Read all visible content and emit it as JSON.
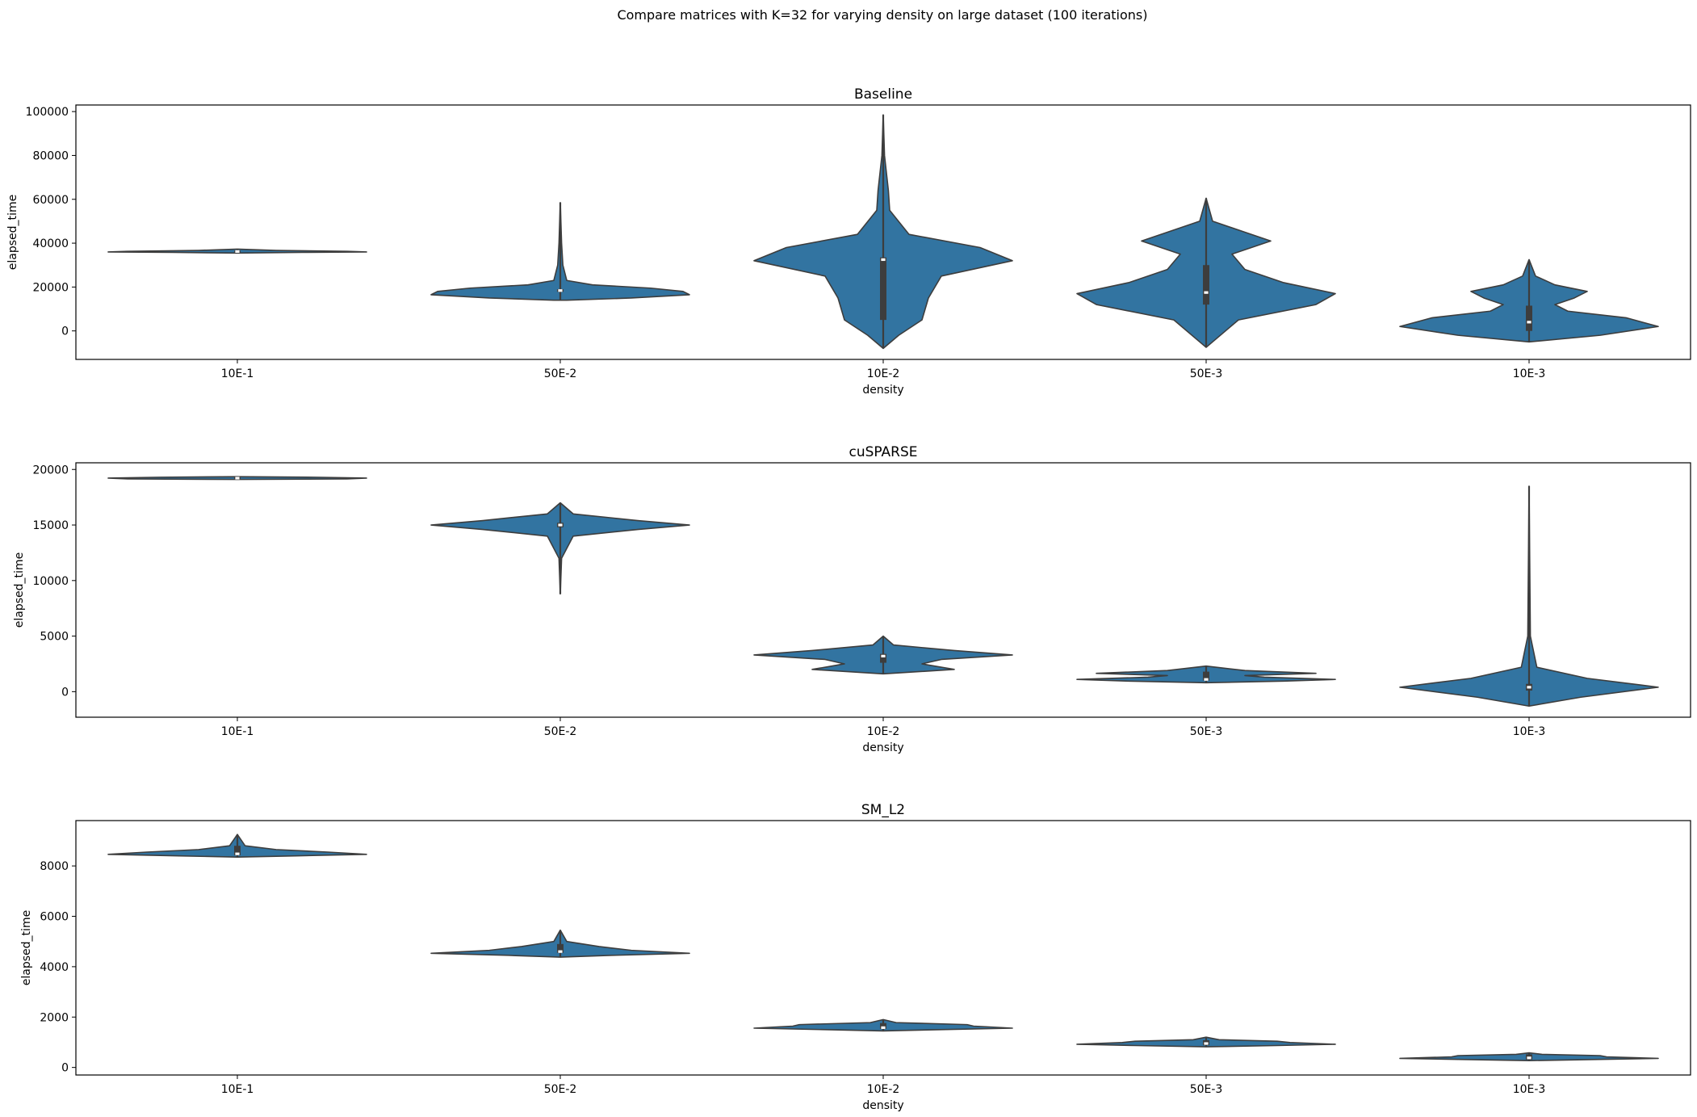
{
  "suptitle": "Compare matrices with K=32 for varying density on large dataset (100 iterations)",
  "colors": {
    "violin": "#3274a1",
    "edge": "#3d3d3d",
    "box": "#3d3d3d",
    "median": "#ffffff",
    "axis": "#000000"
  },
  "chart_data": [
    {
      "type": "violin",
      "title": "Baseline",
      "xlabel": "density",
      "ylabel": "elapsed_time",
      "categories": [
        "10E-1",
        "50E-2",
        "10E-2",
        "50E-3",
        "10E-3"
      ],
      "ylim": [
        -13000,
        103000
      ],
      "yticks": [
        0,
        20000,
        40000,
        60000,
        80000,
        100000
      ],
      "ytick_labels": [
        "0",
        "20000",
        "40000",
        "60000",
        "80000",
        "100000"
      ],
      "violins": [
        {
          "min": 35500,
          "max": 37300,
          "q1": 35900,
          "q3": 36600,
          "median": 36200,
          "profile": [
            [
              35500,
              0
            ],
            [
              35800,
              0.5
            ],
            [
              36000,
              1.0
            ],
            [
              36300,
              0.85
            ],
            [
              36700,
              0.3
            ],
            [
              37300,
              0
            ]
          ]
        },
        {
          "min": 14000,
          "max": 58500,
          "q1": 17800,
          "q3": 19000,
          "median": 18400,
          "profile": [
            [
              14000,
              0.05
            ],
            [
              15000,
              0.55
            ],
            [
              16500,
              1.0
            ],
            [
              18000,
              0.95
            ],
            [
              19500,
              0.7
            ],
            [
              21000,
              0.25
            ],
            [
              23000,
              0.05
            ],
            [
              30000,
              0.02
            ],
            [
              40000,
              0.01
            ],
            [
              58500,
              0
            ]
          ]
        },
        {
          "min": -8000,
          "max": 98500,
          "q1": 5000,
          "q3": 33500,
          "median": 32500,
          "profile": [
            [
              -8000,
              0
            ],
            [
              -2000,
              0.12
            ],
            [
              5000,
              0.3
            ],
            [
              15000,
              0.35
            ],
            [
              25000,
              0.45
            ],
            [
              32000,
              1.0
            ],
            [
              38000,
              0.75
            ],
            [
              44000,
              0.2
            ],
            [
              55000,
              0.05
            ],
            [
              64000,
              0.04
            ],
            [
              80000,
              0.01
            ],
            [
              98500,
              0
            ]
          ]
        },
        {
          "min": -7500,
          "max": 60500,
          "q1": 12000,
          "q3": 30000,
          "median": 17500,
          "profile": [
            [
              -7500,
              0
            ],
            [
              5000,
              0.25
            ],
            [
              12000,
              0.85
            ],
            [
              17000,
              1.0
            ],
            [
              22000,
              0.6
            ],
            [
              28000,
              0.3
            ],
            [
              35000,
              0.2
            ],
            [
              41000,
              0.5
            ],
            [
              45000,
              0.3
            ],
            [
              50000,
              0.05
            ],
            [
              60500,
              0
            ]
          ]
        },
        {
          "min": -5000,
          "max": 32500,
          "q1": 0,
          "q3": 11500,
          "median": 4000,
          "profile": [
            [
              -5000,
              0
            ],
            [
              -2000,
              0.55
            ],
            [
              2000,
              1.0
            ],
            [
              6000,
              0.75
            ],
            [
              9000,
              0.3
            ],
            [
              12000,
              0.2
            ],
            [
              15000,
              0.35
            ],
            [
              18000,
              0.45
            ],
            [
              21000,
              0.2
            ],
            [
              25000,
              0.05
            ],
            [
              32500,
              0
            ]
          ]
        }
      ]
    },
    {
      "type": "violin",
      "title": "cuSPARSE",
      "xlabel": "density",
      "ylabel": "elapsed_time",
      "categories": [
        "10E-1",
        "50E-2",
        "10E-2",
        "50E-3",
        "10E-3"
      ],
      "ylim": [
        -2300,
        20600
      ],
      "yticks": [
        0,
        5000,
        10000,
        15000,
        20000
      ],
      "ytick_labels": [
        "0",
        "5000",
        "10000",
        "15000",
        "20000"
      ],
      "violins": [
        {
          "min": 19100,
          "max": 19350,
          "q1": 19150,
          "q3": 19300,
          "median": 19220,
          "profile": [
            [
              19100,
              0
            ],
            [
              19150,
              0.85
            ],
            [
              19220,
              1.0
            ],
            [
              19300,
              0.6
            ],
            [
              19350,
              0
            ]
          ]
        },
        {
          "min": 8800,
          "max": 17000,
          "q1": 14800,
          "q3": 15200,
          "median": 15000,
          "profile": [
            [
              8800,
              0
            ],
            [
              12000,
              0.01
            ],
            [
              14000,
              0.1
            ],
            [
              14600,
              0.6
            ],
            [
              15000,
              1.0
            ],
            [
              15400,
              0.6
            ],
            [
              16000,
              0.1
            ],
            [
              17000,
              0
            ]
          ]
        },
        {
          "min": 1600,
          "max": 5000,
          "q1": 2600,
          "q3": 3400,
          "median": 3200,
          "profile": [
            [
              1600,
              0
            ],
            [
              2000,
              0.55
            ],
            [
              2500,
              0.3
            ],
            [
              2900,
              0.45
            ],
            [
              3300,
              1.0
            ],
            [
              3700,
              0.55
            ],
            [
              4200,
              0.08
            ],
            [
              5000,
              0
            ]
          ]
        },
        {
          "min": 800,
          "max": 2300,
          "q1": 1000,
          "q3": 1800,
          "median": 1100,
          "profile": [
            [
              800,
              0
            ],
            [
              950,
              0.6
            ],
            [
              1100,
              1.0
            ],
            [
              1300,
              0.45
            ],
            [
              1450,
              0.3
            ],
            [
              1650,
              0.85
            ],
            [
              1900,
              0.3
            ],
            [
              2300,
              0
            ]
          ]
        },
        {
          "min": -1300,
          "max": 18500,
          "q1": 100,
          "q3": 700,
          "median": 400,
          "profile": [
            [
              -1300,
              0
            ],
            [
              -500,
              0.4
            ],
            [
              400,
              1.0
            ],
            [
              1200,
              0.45
            ],
            [
              2200,
              0.06
            ],
            [
              5000,
              0.01
            ],
            [
              18500,
              0
            ]
          ]
        }
      ]
    },
    {
      "type": "violin",
      "title": "SM_L2",
      "xlabel": "density",
      "ylabel": "elapsed_time",
      "categories": [
        "10E-1",
        "50E-2",
        "10E-2",
        "50E-3",
        "10E-3"
      ],
      "ylim": [
        -300,
        9800
      ],
      "yticks": [
        0,
        2000,
        4000,
        6000,
        8000
      ],
      "ytick_labels": [
        "0",
        "2000",
        "4000",
        "6000",
        "8000"
      ],
      "violins": [
        {
          "min": 8350,
          "max": 9250,
          "q1": 8420,
          "q3": 8800,
          "median": 8480,
          "profile": [
            [
              8350,
              0
            ],
            [
              8400,
              0.45
            ],
            [
              8460,
              1.0
            ],
            [
              8550,
              0.7
            ],
            [
              8650,
              0.3
            ],
            [
              8800,
              0.06
            ],
            [
              9250,
              0
            ]
          ]
        },
        {
          "min": 4380,
          "max": 5450,
          "q1": 4550,
          "q3": 4900,
          "median": 4600,
          "profile": [
            [
              4380,
              0
            ],
            [
              4450,
              0.4
            ],
            [
              4530,
              1.0
            ],
            [
              4650,
              0.55
            ],
            [
              4800,
              0.3
            ],
            [
              5000,
              0.05
            ],
            [
              5450,
              0
            ]
          ]
        },
        {
          "min": 1450,
          "max": 1900,
          "q1": 1530,
          "q3": 1760,
          "median": 1580,
          "profile": [
            [
              1450,
              0
            ],
            [
              1500,
              0.45
            ],
            [
              1560,
              1.0
            ],
            [
              1640,
              0.7
            ],
            [
              1700,
              0.65
            ],
            [
              1780,
              0.1
            ],
            [
              1900,
              0
            ]
          ]
        },
        {
          "min": 820,
          "max": 1200,
          "q1": 880,
          "q3": 1080,
          "median": 950,
          "profile": [
            [
              820,
              0
            ],
            [
              870,
              0.55
            ],
            [
              920,
              1.0
            ],
            [
              990,
              0.65
            ],
            [
              1040,
              0.55
            ],
            [
              1100,
              0.1
            ],
            [
              1200,
              0
            ]
          ]
        },
        {
          "min": 270,
          "max": 580,
          "q1": 310,
          "q3": 520,
          "median": 380,
          "profile": [
            [
              270,
              0
            ],
            [
              320,
              0.55
            ],
            [
              360,
              1.0
            ],
            [
              420,
              0.6
            ],
            [
              470,
              0.55
            ],
            [
              520,
              0.1
            ],
            [
              580,
              0
            ]
          ]
        }
      ]
    }
  ]
}
